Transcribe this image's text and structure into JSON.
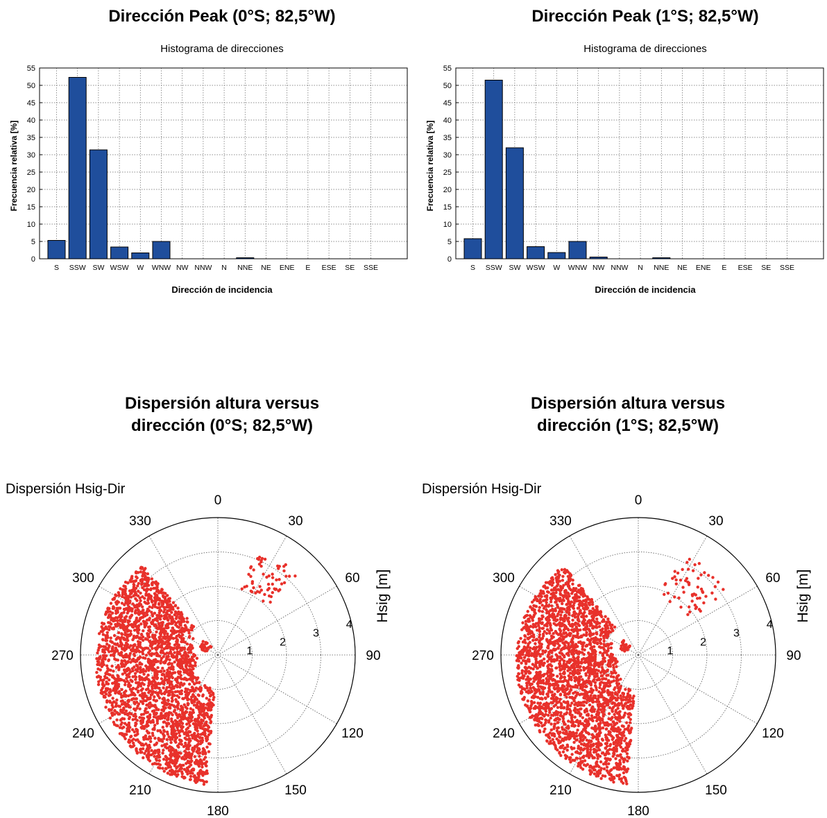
{
  "panels": [
    {
      "title": "Dirección Peak (0°S; 82,5°W)",
      "hist": {
        "subtitle": "Histograma de direcciones",
        "ylabel": "Frecuencia relativa [%]",
        "xlabel": "Dirección de incidencia"
      }
    },
    {
      "title": "Dirección Peak (1°S; 82,5°W)",
      "hist": {
        "subtitle": "Histograma de direcciones",
        "ylabel": "Frecuencia relativa [%]",
        "xlabel": "Dirección de incidencia"
      }
    }
  ],
  "scatter_panels": [
    {
      "title_line1": "Dispersión altura versus",
      "title_line2": "dirección (0°S; 82,5°W)",
      "plot_title": "Dispersión Hsig-Dir",
      "radial_label": "Hsig [m]"
    },
    {
      "title_line1": "Dispersión altura versus",
      "title_line2": "dirección (1°S; 82,5°W)",
      "plot_title": "Dispersión Hsig-Dir",
      "radial_label": "Hsig [m]"
    }
  ],
  "colors": {
    "bar": "#1f4e9c",
    "scatter": "#e8312b",
    "grid": "#555555"
  },
  "chart_data": [
    {
      "type": "bar",
      "title": "Histograma de direcciones",
      "xlabel": "Dirección de incidencia",
      "ylabel": "Frecuencia relativa [%]",
      "categories": [
        "S",
        "SSW",
        "SW",
        "WSW",
        "W",
        "WNW",
        "NW",
        "NNW",
        "N",
        "NNE",
        "NE",
        "ENE",
        "E",
        "ESE",
        "SE",
        "SSE"
      ],
      "values": [
        5.3,
        52.3,
        31.4,
        3.4,
        1.7,
        5.0,
        0,
        0,
        0,
        0.3,
        0,
        0,
        0,
        0,
        0,
        0
      ],
      "ylim": [
        0,
        55
      ],
      "yticks": [
        0,
        5,
        10,
        15,
        20,
        25,
        30,
        35,
        40,
        45,
        50,
        55
      ],
      "grid": true
    },
    {
      "type": "bar",
      "title": "Histograma de direcciones",
      "xlabel": "Dirección de incidencia",
      "ylabel": "Frecuencia relativa [%]",
      "categories": [
        "S",
        "SSW",
        "SW",
        "WSW",
        "W",
        "WNW",
        "NW",
        "NNW",
        "N",
        "NNE",
        "NE",
        "ENE",
        "E",
        "ESE",
        "SE",
        "SSE"
      ],
      "values": [
        5.8,
        51.5,
        32.0,
        3.5,
        1.8,
        5.0,
        0.5,
        0,
        0,
        0.3,
        0,
        0,
        0,
        0,
        0,
        0
      ],
      "ylim": [
        0,
        55
      ],
      "yticks": [
        0,
        5,
        10,
        15,
        20,
        25,
        30,
        35,
        40,
        45,
        50,
        55
      ],
      "grid": true
    },
    {
      "type": "scatter",
      "title": "Dispersión Hsig-Dir",
      "ylabel": "Hsig [m]",
      "angular_ticks": [
        "0",
        "30",
        "60",
        "90",
        "120",
        "150",
        "180",
        "210",
        "240",
        "270",
        "300",
        "330"
      ],
      "radial_ticks": [
        "1",
        "2",
        "3",
        "4"
      ],
      "rlim": [
        0,
        4
      ],
      "clusters": [
        {
          "dir_range": [
            185,
            320
          ],
          "hsig_range": [
            0.8,
            3.8
          ]
        },
        {
          "dir_range": [
            20,
            45
          ],
          "hsig_range": [
            2.0,
            3.3
          ]
        },
        {
          "dir_range": [
            285,
            320
          ],
          "hsig_range": [
            0.3,
            0.6
          ]
        }
      ]
    },
    {
      "type": "scatter",
      "title": "Dispersión Hsig-Dir",
      "ylabel": "Hsig [m]",
      "angular_ticks": [
        "0",
        "30",
        "60",
        "90",
        "120",
        "150",
        "180",
        "210",
        "240",
        "270",
        "300",
        "330"
      ],
      "radial_ticks": [
        "1",
        "2",
        "3",
        "4"
      ],
      "rlim": [
        0,
        4
      ],
      "clusters": [
        {
          "dir_range": [
            185,
            320
          ],
          "hsig_range": [
            0.8,
            3.8
          ]
        },
        {
          "dir_range": [
            20,
            55
          ],
          "hsig_range": [
            1.8,
            3.2
          ]
        },
        {
          "dir_range": [
            285,
            320
          ],
          "hsig_range": [
            0.3,
            0.6
          ]
        }
      ]
    }
  ]
}
